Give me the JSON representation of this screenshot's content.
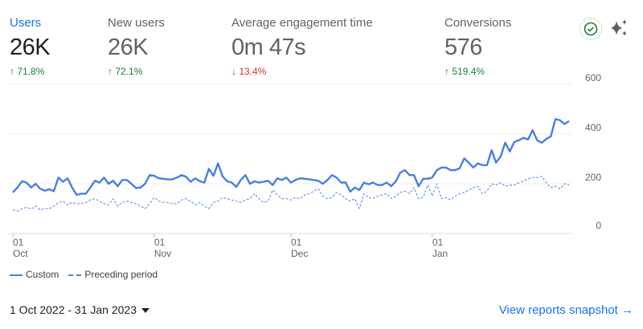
{
  "metrics": [
    {
      "label": "Users",
      "value": "26K",
      "delta": "71.8%",
      "direction": "up",
      "active": true
    },
    {
      "label": "New users",
      "value": "26K",
      "delta": "72.1%",
      "direction": "up",
      "active": false
    },
    {
      "label": "Average engagement time",
      "value": "0m 47s",
      "delta": "13.4%",
      "direction": "down",
      "active": false
    },
    {
      "label": "Conversions",
      "value": "576",
      "delta": "519.4%",
      "direction": "up",
      "active": false
    }
  ],
  "icons": {
    "check": "check-circle-icon",
    "insights": "sparkle-icon"
  },
  "colors": {
    "accent": "#1a73e8",
    "line": "#4a7fd9",
    "up": "#188038",
    "down": "#d93025"
  },
  "chart_data": {
    "type": "line",
    "x_start": "2022-10-01",
    "x_end": "2023-01-31",
    "x_ticks": [
      {
        "day": "01",
        "month": "Oct"
      },
      {
        "day": "01",
        "month": "Nov"
      },
      {
        "day": "01",
        "month": "Dec"
      },
      {
        "day": "01",
        "month": "Jan"
      }
    ],
    "y_ticks": [
      "0",
      "200",
      "400",
      "600"
    ],
    "ylim": [
      0,
      600
    ],
    "grid": true,
    "legend_placement": "bottom-left",
    "series": [
      {
        "name": "Custom",
        "style": "solid",
        "values": [
          165,
          185,
          210,
          205,
          185,
          200,
          180,
          172,
          178,
          170,
          225,
          208,
          222,
          185,
          155,
          160,
          160,
          185,
          212,
          205,
          225,
          200,
          212,
          190,
          215,
          215,
          200,
          183,
          185,
          200,
          235,
          232,
          222,
          220,
          217,
          218,
          225,
          235,
          228,
          208,
          222,
          210,
          205,
          260,
          232,
          282,
          230,
          210,
          205,
          187,
          215,
          235,
          200,
          210,
          205,
          208,
          212,
          195,
          222,
          215,
          225,
          205,
          215,
          222,
          220,
          218,
          215,
          212,
          200,
          215,
          235,
          225,
          205,
          205,
          168,
          185,
          175,
          205,
          198,
          205,
          195,
          195,
          205,
          190,
          210,
          245,
          255,
          235,
          235,
          190,
          220,
          220,
          225,
          255,
          265,
          265,
          255,
          255,
          262,
          302,
          285,
          265,
          282,
          275,
          275,
          335,
          285,
          310,
          365,
          330,
          368,
          375,
          385,
          378,
          415,
          375,
          365,
          380,
          390,
          460,
          455,
          440,
          452
        ]
      },
      {
        "name": "Preceding period",
        "style": "dashed",
        "values": [
          95,
          90,
          100,
          105,
          98,
          110,
          95,
          100,
          100,
          110,
          125,
          130,
          115,
          125,
          120,
          120,
          125,
          135,
          140,
          130,
          120,
          115,
          140,
          110,
          125,
          130,
          125,
          120,
          110,
          100,
          120,
          145,
          130,
          125,
          125,
          120,
          120,
          135,
          140,
          130,
          115,
          125,
          110,
          100,
          125,
          130,
          145,
          140,
          135,
          130,
          125,
          135,
          140,
          160,
          140,
          125,
          130,
          175,
          155,
          140,
          140,
          135,
          145,
          140,
          155,
          160,
          170,
          180,
          150,
          140,
          145,
          165,
          155,
          140,
          130,
          140,
          100,
          160,
          145,
          140,
          150,
          155,
          160,
          140,
          150,
          165,
          170,
          160,
          185,
          140,
          145,
          195,
          150,
          200,
          140,
          145,
          135,
          150,
          160,
          165,
          175,
          185,
          190,
          160,
          170,
          200,
          195,
          205,
          190,
          195,
          195,
          205,
          210,
          220,
          225,
          225,
          230,
          205,
          185,
          190,
          180,
          200,
          195
        ]
      }
    ]
  },
  "legend": {
    "custom": "Custom",
    "preceding": "Preceding period"
  },
  "footer": {
    "date_range": "1 Oct 2022 - 31 Jan 2023",
    "link": "View reports snapshot"
  }
}
